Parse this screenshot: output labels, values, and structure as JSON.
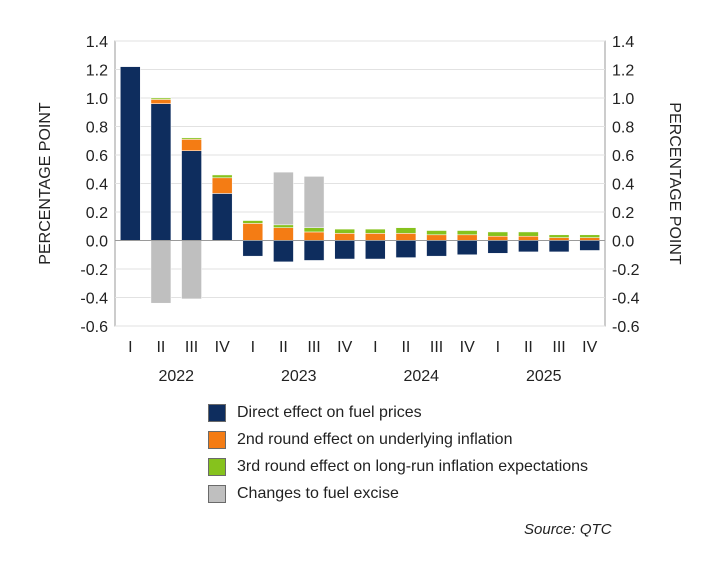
{
  "chart_data": {
    "type": "bar",
    "stacked": true,
    "ylim": [
      -0.6,
      1.4
    ],
    "yticks": [
      -0.6,
      -0.4,
      -0.2,
      0.0,
      0.2,
      0.4,
      0.6,
      0.8,
      1.0,
      1.2,
      1.4
    ],
    "ytick_labels": [
      "-0.6",
      "-0.4",
      "-0.2",
      "0.0",
      "0.2",
      "0.4",
      "0.6",
      "0.8",
      "1.0",
      "1.2",
      "1.4"
    ],
    "ylabel": "PERCENTAGE POINT",
    "ylabel_right": "PERCENTAGE POINT",
    "categories": [
      "I",
      "II",
      "III",
      "IV",
      "I",
      "II",
      "III",
      "IV",
      "I",
      "II",
      "III",
      "IV",
      "I",
      "II",
      "III",
      "IV"
    ],
    "years": [
      {
        "label": "2022",
        "start": 0,
        "end": 3
      },
      {
        "label": "2023",
        "start": 4,
        "end": 7
      },
      {
        "label": "2024",
        "start": 8,
        "end": 11
      },
      {
        "label": "2025",
        "start": 12,
        "end": 15
      }
    ],
    "grid": true,
    "series": [
      {
        "name": "Direct effect on fuel prices",
        "color": "#0e2d5e",
        "values": [
          1.22,
          0.96,
          0.63,
          0.33,
          -0.11,
          -0.15,
          -0.14,
          -0.13,
          -0.13,
          -0.12,
          -0.11,
          -0.1,
          -0.09,
          -0.08,
          -0.08,
          -0.07
        ]
      },
      {
        "name": "2nd round effect on underlying inflation",
        "color": "#f47c14",
        "values": [
          0.0,
          0.03,
          0.08,
          0.11,
          0.12,
          0.09,
          0.06,
          0.05,
          0.05,
          0.05,
          0.04,
          0.04,
          0.03,
          0.03,
          0.02,
          0.02
        ]
      },
      {
        "name": "3rd round effect on long-run inflation expectations",
        "color": "#86c21d",
        "values": [
          0.0,
          0.01,
          0.01,
          0.02,
          0.02,
          0.02,
          0.03,
          0.03,
          0.03,
          0.04,
          0.03,
          0.03,
          0.03,
          0.03,
          0.02,
          0.02
        ]
      },
      {
        "name": "Changes to fuel excise",
        "color": "#bfbfbf",
        "values": [
          0.0,
          -0.44,
          -0.41,
          0.0,
          0.0,
          0.37,
          0.36,
          0.0,
          0.0,
          0.0,
          0.0,
          0.0,
          0.0,
          0.0,
          0.0,
          0.0
        ]
      }
    ],
    "source": "Source: QTC"
  }
}
